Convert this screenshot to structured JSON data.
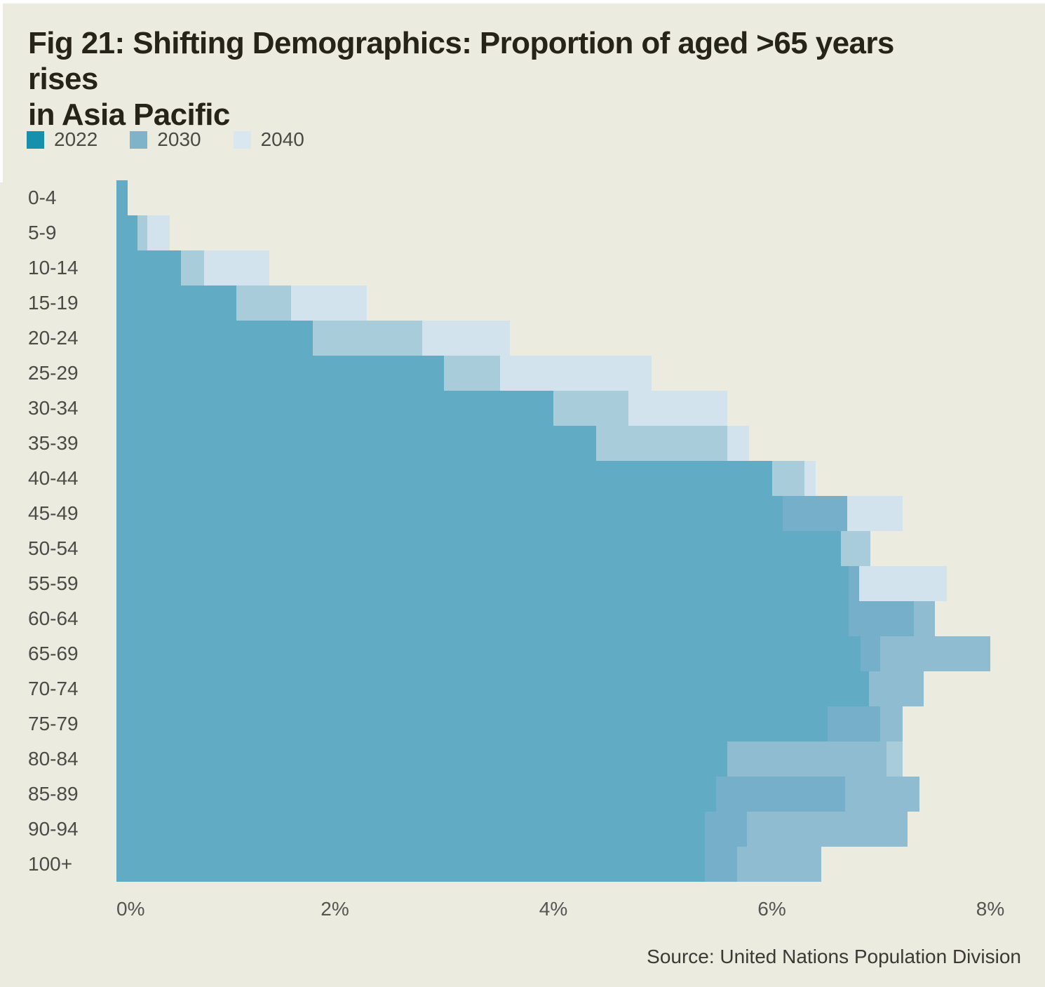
{
  "page": {
    "background": "#ebebdf",
    "border_color": "#ffffff"
  },
  "title": {
    "line1": "Fig 21: Shifting Demographics: Proportion of aged >65 years rises",
    "line2": "in Asia Pacific"
  },
  "legend": [
    {
      "label": "2022",
      "color": "#1690ad"
    },
    {
      "label": "2030",
      "color": "#7fb4c8"
    },
    {
      "label": "2040",
      "color": "#d8e7f0"
    }
  ],
  "source": "Source: United Nations Population Division",
  "chart_data": {
    "type": "bar",
    "orientation": "horizontal",
    "title": "Fig 21: Shifting Demographics: Proportion of aged >65 years rises in Asia Pacific",
    "xlabel": "",
    "ylabel": "",
    "x_ticks": [
      "0%",
      "2%",
      "4%",
      "6%",
      "8%"
    ],
    "x_tick_values": [
      0,
      2,
      4,
      6,
      8
    ],
    "xlim": [
      0,
      8.5
    ],
    "grid": false,
    "legend_position": "top-left",
    "categories": [
      "0-4",
      "5-9",
      "10-14",
      "15-19",
      "20-24",
      "25-29",
      "30-34",
      "35-39",
      "40-44",
      "45-49",
      "50-54",
      "55-59",
      "60-64",
      "65-69",
      "70-74",
      "75-79",
      "80-84",
      "85-89",
      "90-94",
      "100+"
    ],
    "series": [
      {
        "name": "2022",
        "values": [
          0.1,
          0.2,
          0.6,
          1.1,
          1.8,
          3.0,
          4.0,
          4.4,
          6.0,
          6.1,
          6.6,
          6.7,
          6.7,
          6.8,
          6.9,
          6.5,
          5.6,
          5.5,
          5.4,
          5.4
        ]
      },
      {
        "name": "2030",
        "values": [
          null,
          0.3,
          0.8,
          1.6,
          2.8,
          3.5,
          4.7,
          5.6,
          6.3,
          6.7,
          6.9,
          6.8,
          7.3,
          7.0,
          7.4,
          7.0,
          7.1,
          6.7,
          5.8,
          5.7
        ]
      },
      {
        "name": "2040",
        "values": [
          null,
          0.5,
          1.4,
          2.3,
          3.6,
          4.9,
          5.6,
          5.8,
          6.4,
          7.2,
          null,
          7.6,
          7.5,
          8.0,
          null,
          7.2,
          7.2,
          7.4,
          7.2,
          6.5
        ]
      }
    ],
    "palette": {
      "a": "#61abc5",
      "b": "#a8ccd9",
      "c": "#d3e3ee",
      "d": "#75afc9",
      "e": "#8fbcd0"
    },
    "rows": [
      {
        "age": "0-4",
        "segments": [
          {
            "color": "a",
            "end": 0.1
          }
        ]
      },
      {
        "age": "5-9",
        "segments": [
          {
            "color": "a",
            "end": 0.19
          },
          {
            "color": "b",
            "end": 0.28
          },
          {
            "color": "c",
            "end": 0.49
          }
        ]
      },
      {
        "age": "10-14",
        "segments": [
          {
            "color": "a",
            "end": 0.59
          },
          {
            "color": "b",
            "end": 0.8
          },
          {
            "color": "c",
            "end": 1.4
          }
        ]
      },
      {
        "age": "15-19",
        "segments": [
          {
            "color": "a",
            "end": 1.1
          },
          {
            "color": "b",
            "end": 1.6
          },
          {
            "color": "c",
            "end": 2.29
          }
        ]
      },
      {
        "age": "20-24",
        "segments": [
          {
            "color": "a",
            "end": 1.8
          },
          {
            "color": "b",
            "end": 2.8
          },
          {
            "color": "c",
            "end": 3.6
          }
        ]
      },
      {
        "age": "25-29",
        "segments": [
          {
            "color": "a",
            "end": 3.0
          },
          {
            "color": "b",
            "end": 3.51
          },
          {
            "color": "c",
            "end": 4.9
          }
        ]
      },
      {
        "age": "30-34",
        "segments": [
          {
            "color": "a",
            "end": 4.0
          },
          {
            "color": "b",
            "end": 4.69
          },
          {
            "color": "c",
            "end": 5.59
          }
        ]
      },
      {
        "age": "35-39",
        "segments": [
          {
            "color": "a",
            "end": 4.39
          },
          {
            "color": "b",
            "end": 5.59
          },
          {
            "color": "c",
            "end": 5.79
          }
        ]
      },
      {
        "age": "40-44",
        "segments": [
          {
            "color": "a",
            "end": 6.0
          },
          {
            "color": "b",
            "end": 6.3
          },
          {
            "color": "c",
            "end": 6.4
          }
        ]
      },
      {
        "age": "45-49",
        "segments": [
          {
            "color": "a",
            "end": 6.1
          },
          {
            "color": "d",
            "end": 6.69
          },
          {
            "color": "c",
            "end": 7.2
          }
        ]
      },
      {
        "age": "50-54",
        "segments": [
          {
            "color": "a",
            "end": 6.63
          },
          {
            "color": "b",
            "end": 6.9
          }
        ]
      },
      {
        "age": "55-59",
        "segments": [
          {
            "color": "a",
            "end": 6.7
          },
          {
            "color": "d",
            "end": 6.8
          },
          {
            "color": "c",
            "end": 7.6
          }
        ]
      },
      {
        "age": "60-64",
        "segments": [
          {
            "color": "a",
            "end": 6.7
          },
          {
            "color": "d",
            "end": 7.3
          },
          {
            "color": "e",
            "end": 7.49
          }
        ]
      },
      {
        "age": "65-69",
        "segments": [
          {
            "color": "a",
            "end": 6.81
          },
          {
            "color": "d",
            "end": 6.99
          },
          {
            "color": "e",
            "end": 8.0
          }
        ]
      },
      {
        "age": "70-74",
        "segments": [
          {
            "color": "a",
            "end": 6.89
          },
          {
            "color": "e",
            "end": 7.39
          }
        ]
      },
      {
        "age": "75-79",
        "segments": [
          {
            "color": "a",
            "end": 6.51
          },
          {
            "color": "d",
            "end": 6.99
          },
          {
            "color": "e",
            "end": 7.2
          }
        ]
      },
      {
        "age": "80-84",
        "segments": [
          {
            "color": "a",
            "end": 5.59
          },
          {
            "color": "e",
            "end": 7.05
          },
          {
            "color": "b",
            "end": 7.2
          }
        ]
      },
      {
        "age": "85-89",
        "segments": [
          {
            "color": "a",
            "end": 5.49
          },
          {
            "color": "d",
            "end": 6.67
          },
          {
            "color": "e",
            "end": 7.35
          }
        ]
      },
      {
        "age": "90-94",
        "segments": [
          {
            "color": "a",
            "end": 5.39
          },
          {
            "color": "d",
            "end": 5.77
          },
          {
            "color": "e",
            "end": 7.24
          }
        ]
      },
      {
        "age": "100+",
        "segments": [
          {
            "color": "a",
            "end": 5.39
          },
          {
            "color": "d",
            "end": 5.68
          },
          {
            "color": "e",
            "end": 6.45
          }
        ]
      }
    ]
  }
}
